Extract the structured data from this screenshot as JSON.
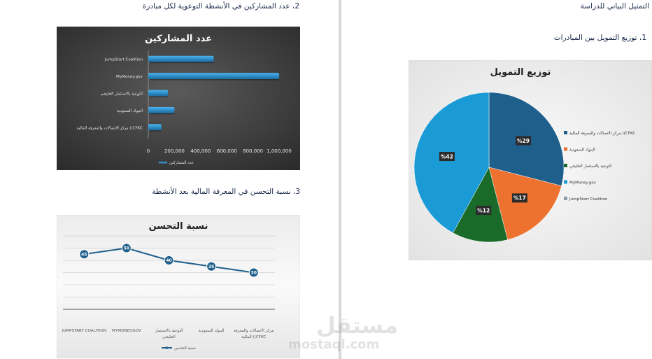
{
  "right_page": {
    "section_title": "التمثيل البياني للدراسة",
    "item1_heading": "1، توزيع التمويل بين المبادرات"
  },
  "left_page": {
    "item2_heading": "2، عدد المشاركين في الأنشطة التوعوية لكل مبادرة",
    "item3_heading": "3، نسبة التحسن في المعرفة المالية بعد الأنشطة"
  },
  "watermark": {
    "brand": "مستقل",
    "url": "mostaql.com"
  },
  "chart_data": [
    {
      "type": "bar",
      "orientation": "horizontal",
      "title": "عدد المشاركين",
      "categories": [
        "مركز الاتصالات والمعرفة المالية ((CFKC",
        "البنوك السعودية",
        "التوعية بالاستثمار الخليجي",
        "MyMoney.gov",
        "JumpStart Coalition"
      ],
      "series": [
        {
          "name": "عدد المشاركين",
          "values": [
            100000,
            200000,
            150000,
            1000000,
            500000
          ]
        }
      ],
      "tick_labels": [
        "0",
        "200,000",
        "400,000",
        "600,000",
        "800,000",
        "1,000,000"
      ],
      "xlim": [
        0,
        1000000
      ],
      "legend": "bottom",
      "colors": {
        "background": "#3a3a3a",
        "bar": "#2e8fc9"
      }
    },
    {
      "type": "line",
      "title": "نسبة التحسن",
      "categories": [
        "مركز الاتصالات والمعرفة المالية ((CFKC",
        "البنوك السعودية",
        "التوعية بالاستثمار الخليجي",
        "MYMONEY.GOV",
        "JUMPSTART COALITION"
      ],
      "series": [
        {
          "name": "نسبة التحسن",
          "values": [
            30,
            35,
            40,
            50,
            45
          ]
        }
      ],
      "ylim": [
        0,
        60
      ],
      "legend": "bottom",
      "colors": {
        "line": "#1f5f8b",
        "marker": "#1f5f8b"
      }
    },
    {
      "type": "pie",
      "title": "توزيع التمويل",
      "categories": [
        "مركز الاتصالات والمعرفة المالية ((CFKC",
        "البنوك السعودية",
        "التوعية بالاستثمار الخليجي",
        "MyMoney.gov",
        "JumpStart Coalition"
      ],
      "values": [
        29,
        17,
        12,
        42,
        0
      ],
      "data_labels": [
        "%29",
        "%17",
        "%12",
        "%42",
        ""
      ],
      "legend": "right",
      "colors": [
        "#1f5f8b",
        "#ed7230",
        "#1a6b2a",
        "#1b9bd6",
        "#8d9aa8"
      ]
    }
  ]
}
